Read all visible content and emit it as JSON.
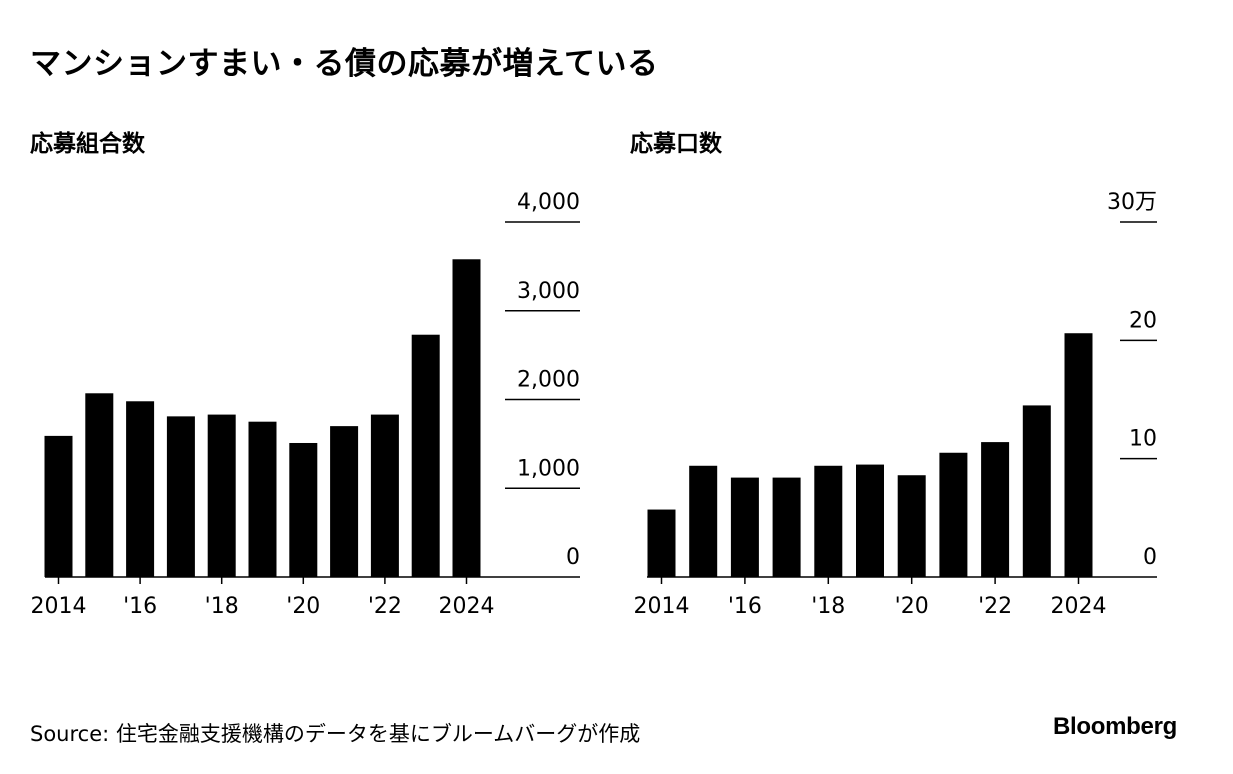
{
  "title": "マンションすまい・る債の応募が増えている",
  "source": "Source: 住宅金融支援機構のデータを基にブルームバーグが作成",
  "logo": "Bloomberg",
  "chart_data": [
    {
      "type": "bar",
      "title": "応募組合数",
      "categories": [
        "2014",
        "2015",
        "2016",
        "2017",
        "2018",
        "2019",
        "2020",
        "2021",
        "2022",
        "2023",
        "2024"
      ],
      "x_tick_labels": [
        "2014",
        "",
        "'16",
        "",
        "'18",
        "",
        "'20",
        "",
        "'22",
        "",
        "2024"
      ],
      "values": [
        1590,
        2070,
        1980,
        1810,
        1830,
        1750,
        1510,
        1700,
        1830,
        2730,
        3580
      ],
      "ylim": [
        0,
        4000
      ],
      "y_ticks": [
        0,
        1000,
        2000,
        3000,
        4000
      ],
      "y_tick_labels": [
        "0",
        "1,000",
        "2,000",
        "3,000",
        "4,000"
      ],
      "color": "#000000"
    },
    {
      "type": "bar",
      "title": "応募口数",
      "categories": [
        "2014",
        "2015",
        "2016",
        "2017",
        "2018",
        "2019",
        "2020",
        "2021",
        "2022",
        "2023",
        "2024"
      ],
      "x_tick_labels": [
        "2014",
        "",
        "'16",
        "",
        "'18",
        "",
        "'20",
        "",
        "'22",
        "",
        "2024"
      ],
      "values": [
        5.7,
        9.4,
        8.4,
        8.4,
        9.4,
        9.5,
        8.6,
        10.5,
        11.4,
        14.5,
        20.6
      ],
      "ylim": [
        0,
        30
      ],
      "y_ticks": [
        0,
        10,
        20,
        30
      ],
      "y_tick_labels": [
        "0",
        "10",
        "20",
        "30万"
      ],
      "color": "#000000"
    }
  ]
}
